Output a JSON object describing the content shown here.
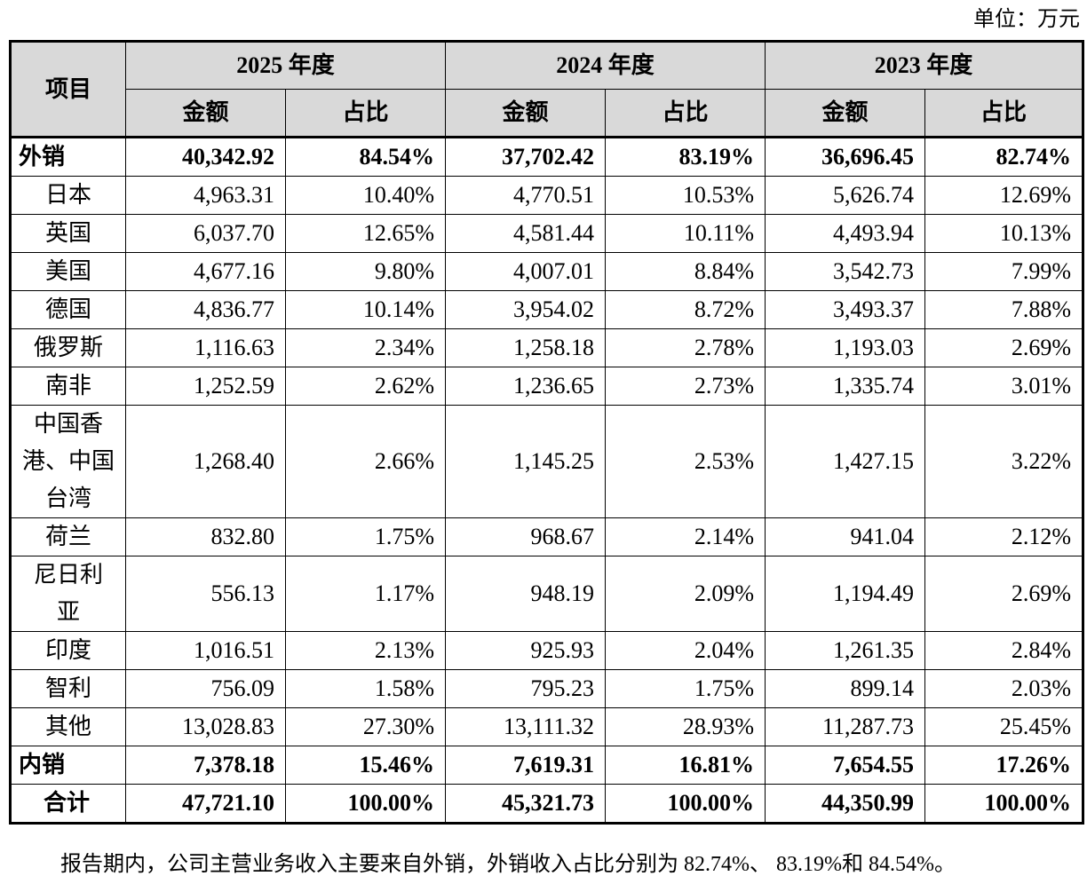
{
  "unit_label": "单位：万元",
  "header": {
    "item": "项目",
    "years": [
      "2025 年度",
      "2024 年度",
      "2023 年度"
    ],
    "amount": "金额",
    "ratio": "占比"
  },
  "rows": [
    {
      "name": "外销",
      "bold": true,
      "v": [
        "40,342.92",
        "84.54%",
        "37,702.42",
        "83.19%",
        "36,696.45",
        "82.74%"
      ]
    },
    {
      "name": "日本",
      "v": [
        "4,963.31",
        "10.40%",
        "4,770.51",
        "10.53%",
        "5,626.74",
        "12.69%"
      ]
    },
    {
      "name": "英国",
      "v": [
        "6,037.70",
        "12.65%",
        "4,581.44",
        "10.11%",
        "4,493.94",
        "10.13%"
      ]
    },
    {
      "name": "美国",
      "v": [
        "4,677.16",
        "9.80%",
        "4,007.01",
        "8.84%",
        "3,542.73",
        "7.99%"
      ]
    },
    {
      "name": "德国",
      "v": [
        "4,836.77",
        "10.14%",
        "3,954.02",
        "8.72%",
        "3,493.37",
        "7.88%"
      ]
    },
    {
      "name": "俄罗斯",
      "v": [
        "1,116.63",
        "2.34%",
        "1,258.18",
        "2.78%",
        "1,193.03",
        "2.69%"
      ]
    },
    {
      "name": "南非",
      "v": [
        "1,252.59",
        "2.62%",
        "1,236.65",
        "2.73%",
        "1,335.74",
        "3.01%"
      ]
    },
    {
      "name": "中国香港、中国台湾",
      "v": [
        "1,268.40",
        "2.66%",
        "1,145.25",
        "2.53%",
        "1,427.15",
        "3.22%"
      ]
    },
    {
      "name": "荷兰",
      "v": [
        "832.80",
        "1.75%",
        "968.67",
        "2.14%",
        "941.04",
        "2.12%"
      ]
    },
    {
      "name": "尼日利亚",
      "v": [
        "556.13",
        "1.17%",
        "948.19",
        "2.09%",
        "1,194.49",
        "2.69%"
      ]
    },
    {
      "name": "印度",
      "v": [
        "1,016.51",
        "2.13%",
        "925.93",
        "2.04%",
        "1,261.35",
        "2.84%"
      ]
    },
    {
      "name": "智利",
      "v": [
        "756.09",
        "1.58%",
        "795.23",
        "1.75%",
        "899.14",
        "2.03%"
      ]
    },
    {
      "name": "其他",
      "v": [
        "13,028.83",
        "27.30%",
        "13,111.32",
        "28.93%",
        "11,287.73",
        "25.45%"
      ]
    },
    {
      "name": "内销",
      "bold": true,
      "v": [
        "7,378.18",
        "15.46%",
        "7,619.31",
        "16.81%",
        "7,654.55",
        "17.26%"
      ]
    },
    {
      "name": "合计",
      "bold": true,
      "total": true,
      "v": [
        "47,721.10",
        "100.00%",
        "45,321.73",
        "100.00%",
        "44,350.99",
        "100.00%"
      ]
    }
  ],
  "footnote": "报告期内，公司主营业务收入主要来自外销，外销收入占比分别为 82.74%、 83.19%和 84.54%。"
}
